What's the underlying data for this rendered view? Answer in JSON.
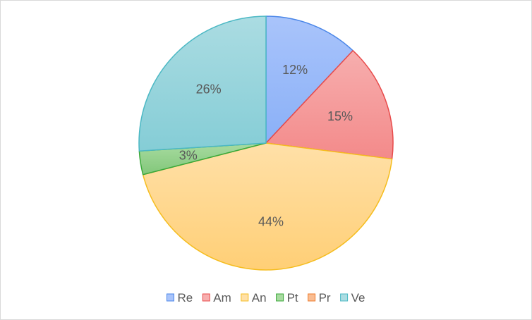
{
  "chart_data": {
    "type": "pie",
    "categories": [
      "Re",
      "Am",
      "An",
      "Pt",
      "Pr",
      "Ve"
    ],
    "values": [
      12,
      15,
      44,
      3,
      0,
      26
    ],
    "labels": [
      "12%",
      "15%",
      "44%",
      "3%",
      "",
      "26%"
    ],
    "legend": "bottom",
    "colors": {
      "fill_top": [
        "#a9c4fb",
        "#f7aeae",
        "#ffe0a8",
        "#a8dba0",
        "#f9bd93",
        "#abdce2"
      ],
      "fill_bottom": [
        "#8ab0f7",
        "#f38a8a",
        "#ffcf76",
        "#82c77a",
        "#f59f62",
        "#85cdd6"
      ],
      "stroke": [
        "#4a86e8",
        "#e84a4a",
        "#f5bd1f",
        "#3aa83a",
        "#ee7a2a",
        "#4bb8c4"
      ]
    }
  }
}
